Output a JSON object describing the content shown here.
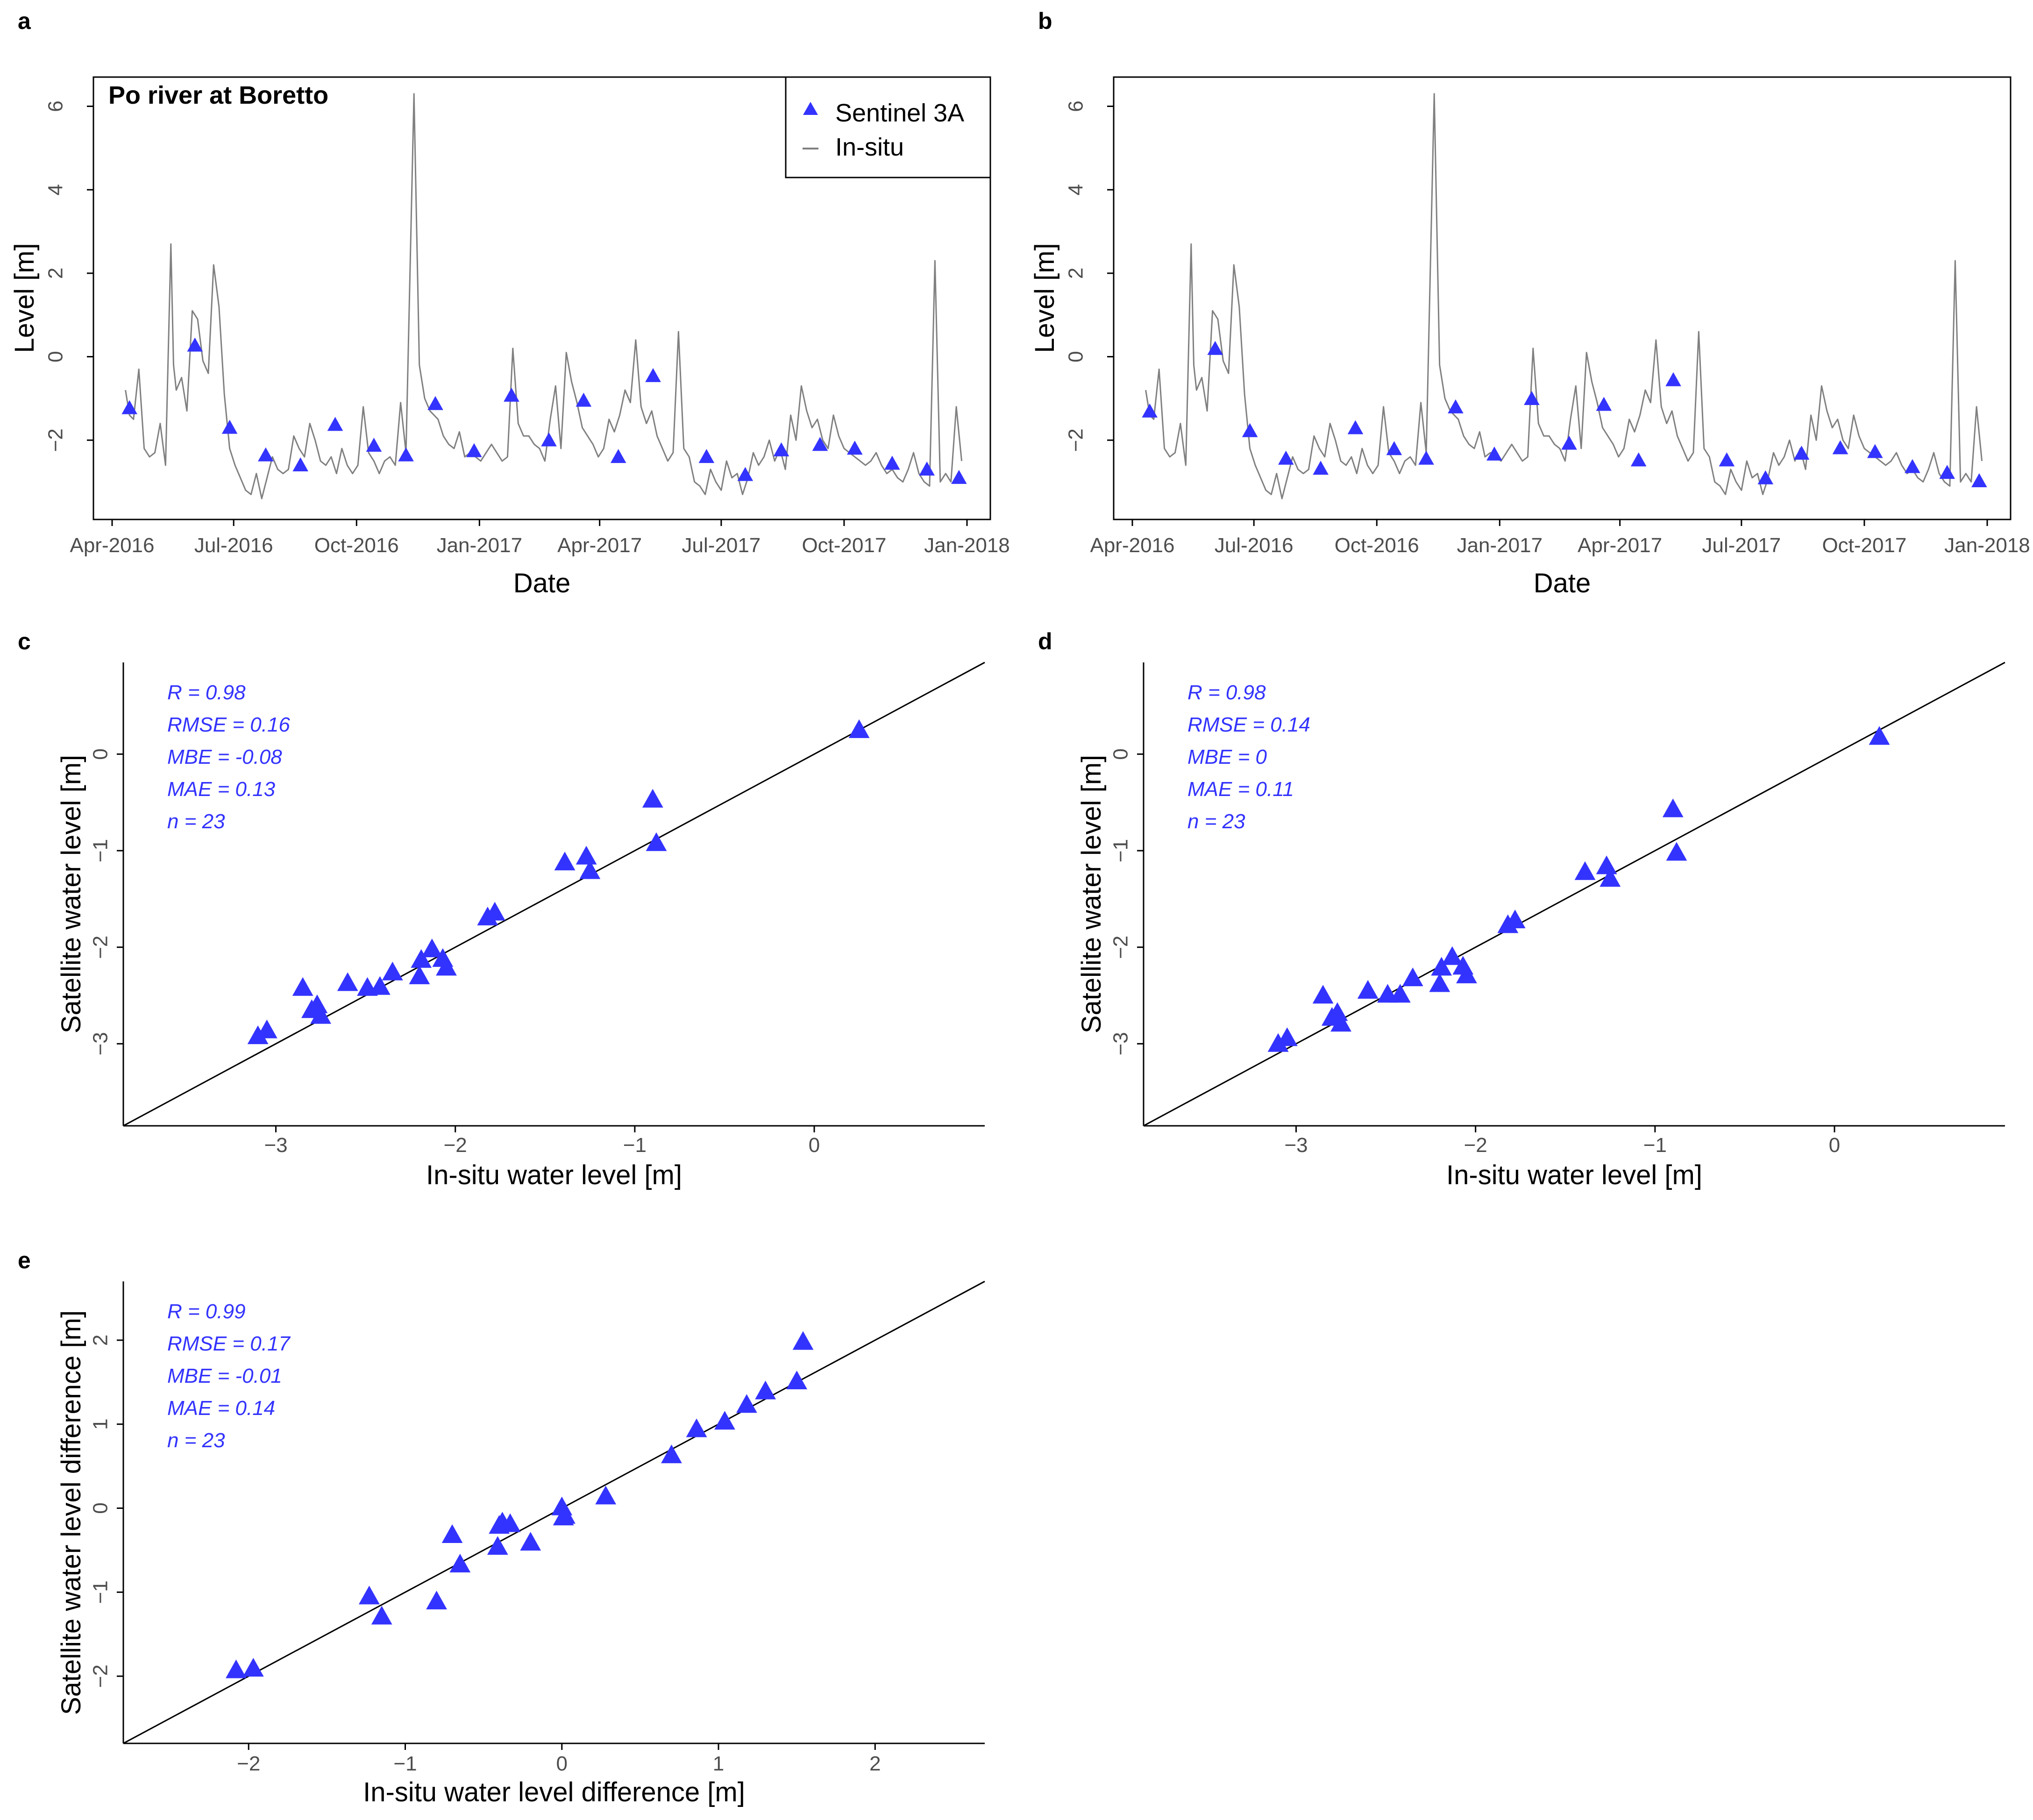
{
  "colors": {
    "satellite": "#3333ff",
    "insitu": "#808080",
    "fit": "#000000",
    "axis": "#000000",
    "tick_text": "#4d4d4d"
  },
  "chart_data": [
    {
      "id": "a",
      "panel_label": "a",
      "type": "line",
      "title": "Po river at Boretto",
      "xlabel": "Date",
      "ylabel": "Level [m]",
      "xlim": [
        0,
        640
      ],
      "ylim": [
        -3.9,
        6.7
      ],
      "x_ticks": [
        {
          "x": 0,
          "label": "Apr-2016"
        },
        {
          "x": 91,
          "label": "Jul-2016"
        },
        {
          "x": 183,
          "label": "Oct-2016"
        },
        {
          "x": 275,
          "label": "Jan-2017"
        },
        {
          "x": 365,
          "label": "Apr-2017"
        },
        {
          "x": 456,
          "label": "Jul-2017"
        },
        {
          "x": 548,
          "label": "Oct-2017"
        },
        {
          "x": 640,
          "label": "Jan-2018"
        }
      ],
      "y_ticks": [
        -2,
        0,
        2,
        4,
        6
      ],
      "legend": [
        {
          "label": "Sentinel 3A",
          "marker": "triangle"
        },
        {
          "label": "In-situ",
          "marker": "line"
        }
      ],
      "legend_position": "top-right",
      "series": [
        {
          "name": "In-situ",
          "kind": "line",
          "x": [
            10,
            13,
            16,
            20,
            24,
            28,
            32,
            36,
            40,
            44,
            46,
            48,
            52,
            56,
            60,
            64,
            68,
            72,
            76,
            80,
            84,
            88,
            92,
            96,
            100,
            104,
            108,
            112,
            116,
            120,
            124,
            128,
            132,
            136,
            140,
            144,
            148,
            152,
            156,
            160,
            164,
            168,
            172,
            176,
            180,
            184,
            188,
            192,
            196,
            200,
            204,
            208,
            212,
            216,
            220,
            226,
            230,
            234,
            238,
            244,
            248,
            252,
            256,
            260,
            264,
            268,
            272,
            276,
            280,
            284,
            288,
            292,
            296,
            300,
            304,
            308,
            312,
            316,
            320,
            324,
            328,
            332,
            336,
            340,
            344,
            348,
            352,
            356,
            360,
            364,
            368,
            372,
            376,
            380,
            384,
            388,
            392,
            396,
            400,
            404,
            408,
            412,
            416,
            420,
            424,
            428,
            432,
            436,
            440,
            444,
            448,
            452,
            456,
            460,
            464,
            468,
            472,
            476,
            480,
            484,
            488,
            492,
            496,
            500,
            504,
            508,
            512,
            516,
            520,
            524,
            528,
            532,
            536,
            540,
            544,
            548,
            552,
            556,
            560,
            564,
            568,
            572,
            576,
            580,
            584,
            588,
            592,
            596,
            600,
            604,
            608,
            612,
            616,
            620,
            624,
            628,
            632,
            636
          ],
          "y": [
            -0.8,
            -1.4,
            -1.5,
            -0.3,
            -2.2,
            -2.4,
            -2.3,
            -1.6,
            -2.6,
            2.7,
            -0.2,
            -0.8,
            -0.5,
            -1.3,
            1.1,
            0.9,
            -0.1,
            -0.4,
            2.2,
            1.2,
            -0.9,
            -2.2,
            -2.6,
            -2.9,
            -3.2,
            -3.3,
            -2.8,
            -3.4,
            -2.9,
            -2.4,
            -2.7,
            -2.8,
            -2.7,
            -1.9,
            -2.2,
            -2.4,
            -1.6,
            -2.0,
            -2.5,
            -2.6,
            -2.4,
            -2.8,
            -2.2,
            -2.6,
            -2.8,
            -2.6,
            -1.2,
            -2.3,
            -2.5,
            -2.8,
            -2.5,
            -2.4,
            -2.6,
            -1.1,
            -2.3,
            6.3,
            -0.2,
            -1.0,
            -1.3,
            -1.5,
            -1.9,
            -2.1,
            -2.2,
            -1.8,
            -2.4,
            -2.3,
            -2.4,
            -2.5,
            -2.3,
            -2.1,
            -2.3,
            -2.5,
            -2.4,
            0.2,
            -1.6,
            -1.9,
            -1.9,
            -2.1,
            -2.2,
            -2.5,
            -1.5,
            -0.7,
            -2.2,
            0.1,
            -0.6,
            -1.1,
            -1.7,
            -1.9,
            -2.1,
            -2.4,
            -2.2,
            -1.5,
            -1.8,
            -1.4,
            -0.8,
            -1.1,
            0.4,
            -1.2,
            -1.6,
            -1.3,
            -1.9,
            -2.2,
            -2.5,
            -2.3,
            0.6,
            -2.2,
            -2.4,
            -3.0,
            -3.1,
            -3.3,
            -2.7,
            -3.0,
            -3.2,
            -2.5,
            -2.9,
            -2.8,
            -3.3,
            -2.9,
            -2.3,
            -2.6,
            -2.4,
            -2.0,
            -2.5,
            -2.2,
            -2.7,
            -1.4,
            -2.0,
            -0.7,
            -1.3,
            -1.7,
            -1.5,
            -2.0,
            -2.2,
            -1.4,
            -1.9,
            -2.2,
            -2.3,
            -2.4,
            -2.5,
            -2.6,
            -2.5,
            -2.3,
            -2.6,
            -2.8,
            -2.7,
            -2.9,
            -3.0,
            -2.7,
            -2.3,
            -2.8,
            -3.0,
            -3.1,
            2.3,
            -3.0,
            -2.8,
            -3.0,
            -1.2,
            -2.5
          ]
        },
        {
          "name": "Sentinel 3A",
          "kind": "points",
          "x": [
            13,
            62,
            88,
            115,
            141,
            167,
            196,
            220,
            242,
            271,
            299,
            327,
            353,
            379,
            405,
            445,
            474,
            501,
            530,
            556,
            584,
            610,
            634
          ],
          "y": [
            -1.25,
            0.25,
            -1.72,
            -2.38,
            -2.62,
            -1.65,
            -2.15,
            -2.38,
            -1.15,
            -2.28,
            -0.95,
            -2.02,
            -1.07,
            -2.42,
            -0.48,
            -2.42,
            -2.85,
            -2.26,
            -2.13,
            -2.22,
            -2.58,
            -2.72,
            -2.92
          ]
        }
      ]
    },
    {
      "id": "b",
      "panel_label": "b",
      "type": "line",
      "title": "",
      "xlabel": "Date",
      "ylabel": "Level [m]",
      "xlim": [
        0,
        640
      ],
      "ylim": [
        -3.9,
        6.7
      ],
      "x_ticks": [
        {
          "x": 0,
          "label": "Apr-2016"
        },
        {
          "x": 91,
          "label": "Jul-2016"
        },
        {
          "x": 183,
          "label": "Oct-2016"
        },
        {
          "x": 275,
          "label": "Jan-2017"
        },
        {
          "x": 365,
          "label": "Apr-2017"
        },
        {
          "x": 456,
          "label": "Jul-2017"
        },
        {
          "x": 548,
          "label": "Oct-2017"
        },
        {
          "x": 640,
          "label": "Jan-2018"
        }
      ],
      "y_ticks": [
        -2,
        0,
        2,
        4,
        6
      ],
      "series": [
        {
          "name": "In-situ",
          "kind": "line",
          "same_as_panel": "a"
        },
        {
          "name": "Sentinel 3A",
          "kind": "points",
          "x": [
            13,
            62,
            88,
            115,
            141,
            167,
            196,
            220,
            242,
            271,
            299,
            327,
            353,
            379,
            405,
            445,
            474,
            501,
            530,
            556,
            584,
            610,
            634
          ],
          "y": [
            -1.33,
            0.17,
            -1.8,
            -2.46,
            -2.7,
            -1.73,
            -2.23,
            -2.46,
            -1.23,
            -2.36,
            -1.03,
            -2.1,
            -1.17,
            -2.5,
            -0.58,
            -2.5,
            -2.93,
            -2.34,
            -2.21,
            -2.3,
            -2.66,
            -2.8,
            -3.0
          ]
        }
      ]
    },
    {
      "id": "c",
      "panel_label": "c",
      "type": "scatter",
      "xlabel": "In-situ water level [m]",
      "ylabel": "Satellite water level [m]",
      "xlim": [
        -3.85,
        0.95
      ],
      "ylim": [
        -3.85,
        0.95
      ],
      "x_ticks": [
        -3,
        -2,
        -1,
        0
      ],
      "y_ticks": [
        -3,
        -2,
        -1,
        0
      ],
      "stats": [
        "R = 0.98",
        "RMSE = 0.16",
        "MBE = -0.08",
        "MAE = 0.13",
        "n = 23"
      ],
      "fit_line": "1:1",
      "series": [
        {
          "name": "Sentinel 3A",
          "kind": "points",
          "x": [
            0.25,
            -0.9,
            -0.88,
            -1.27,
            -1.25,
            -1.39,
            -1.78,
            -1.82,
            -2.05,
            -2.07,
            -2.13,
            -2.19,
            -2.2,
            -2.35,
            -2.42,
            -2.49,
            -2.6,
            -2.75,
            -2.77,
            -2.8,
            -2.85,
            -3.05,
            -3.1
          ],
          "y": [
            0.24,
            -0.48,
            -0.93,
            -1.07,
            -1.22,
            -1.13,
            -1.65,
            -1.7,
            -2.22,
            -2.13,
            -2.03,
            -2.14,
            -2.31,
            -2.27,
            -2.42,
            -2.43,
            -2.38,
            -2.72,
            -2.61,
            -2.66,
            -2.43,
            -2.87,
            -2.93
          ]
        }
      ]
    },
    {
      "id": "d",
      "panel_label": "d",
      "type": "scatter",
      "xlabel": "In-situ water level [m]",
      "ylabel": "Satellite water level [m]",
      "xlim": [
        -3.85,
        0.95
      ],
      "ylim": [
        -3.85,
        0.95
      ],
      "x_ticks": [
        -3,
        -2,
        -1,
        0
      ],
      "y_ticks": [
        -3,
        -2,
        -1,
        0
      ],
      "stats": [
        "R = 0.98",
        "RMSE = 0.14",
        "MBE = 0",
        "MAE = 0.11",
        "n = 23"
      ],
      "fit_line": "1:1",
      "series": [
        {
          "name": "Sentinel 3A",
          "kind": "points",
          "x": [
            0.25,
            -0.9,
            -0.88,
            -1.27,
            -1.25,
            -1.39,
            -1.78,
            -1.82,
            -2.05,
            -2.07,
            -2.13,
            -2.19,
            -2.2,
            -2.35,
            -2.42,
            -2.49,
            -2.6,
            -2.75,
            -2.77,
            -2.8,
            -2.85,
            -3.05,
            -3.1
          ],
          "y": [
            0.17,
            -0.58,
            -1.03,
            -1.17,
            -1.3,
            -1.23,
            -1.73,
            -1.78,
            -2.3,
            -2.21,
            -2.11,
            -2.22,
            -2.39,
            -2.33,
            -2.5,
            -2.5,
            -2.46,
            -2.8,
            -2.69,
            -2.74,
            -2.51,
            -2.95,
            -3.01
          ]
        }
      ]
    },
    {
      "id": "e",
      "panel_label": "e",
      "type": "scatter",
      "xlabel": "In-situ water level difference [m]",
      "ylabel": "Satellite water level difference [m]",
      "xlim": [
        -2.8,
        2.7
      ],
      "ylim": [
        -2.8,
        2.7
      ],
      "x_ticks": [
        -2,
        -1,
        0,
        1,
        2
      ],
      "y_ticks": [
        -2,
        -1,
        0,
        1,
        2
      ],
      "stats": [
        "R = 0.99",
        "RMSE = 0.17",
        "MBE = -0.01",
        "MAE = 0.14",
        "n = 23"
      ],
      "fit_line": "1:1",
      "series": [
        {
          "name": "Sentinel 3A",
          "kind": "points",
          "x": [
            1.54,
            1.5,
            1.3,
            1.18,
            1.04,
            0.86,
            0.7,
            0.28,
            0.02,
            0.01,
            0.0,
            -0.2,
            -0.33,
            -0.38,
            -0.4,
            -0.41,
            -0.65,
            -0.7,
            -0.8,
            -1.15,
            -1.23,
            -1.97,
            -2.08
          ],
          "y": [
            1.97,
            1.5,
            1.38,
            1.22,
            1.02,
            0.93,
            0.62,
            0.13,
            -0.1,
            -0.12,
            0.0,
            -0.42,
            -0.2,
            -0.18,
            -0.22,
            -0.47,
            -0.68,
            -0.33,
            -1.12,
            -1.3,
            -1.06,
            -1.92,
            -1.94
          ]
        }
      ]
    }
  ]
}
